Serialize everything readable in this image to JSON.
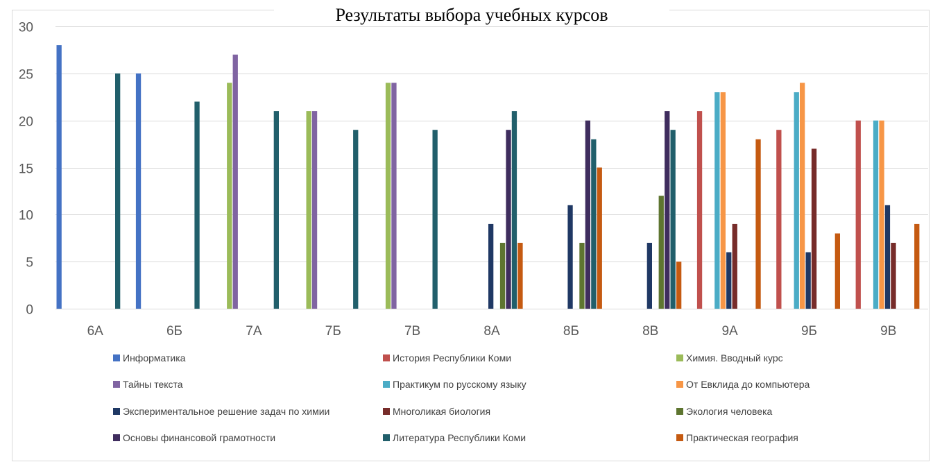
{
  "chart_data": {
    "type": "bar",
    "title": "Результаты выбора учебных курсов",
    "xlabel": "",
    "ylabel": "",
    "ylim": [
      0,
      30
    ],
    "yticks": [
      0,
      5,
      10,
      15,
      20,
      25,
      30
    ],
    "grid": true,
    "legend_position": "bottom",
    "categories": [
      "6А",
      "6Б",
      "7А",
      "7Б",
      "7В",
      "8А",
      "8Б",
      "8В",
      "9А",
      "9Б",
      "9В"
    ],
    "series": [
      {
        "name": "Информатика",
        "color": "#4472C4",
        "values": [
          28,
          25,
          0,
          0,
          0,
          0,
          0,
          0,
          0,
          0,
          0
        ]
      },
      {
        "name": "История Республики Коми",
        "color": "#C0504D",
        "values": [
          0,
          0,
          0,
          0,
          0,
          0,
          0,
          0,
          21,
          19,
          20
        ]
      },
      {
        "name": "Химия. Вводный курс",
        "color": "#9BBB59",
        "values": [
          0,
          0,
          24,
          21,
          24,
          0,
          0,
          0,
          0,
          0,
          0
        ]
      },
      {
        "name": "Тайны текста",
        "color": "#8064A2",
        "values": [
          0,
          0,
          27,
          21,
          24,
          0,
          0,
          0,
          0,
          0,
          0
        ]
      },
      {
        "name": "Практикум по русскому языку",
        "color": "#4BACC6",
        "values": [
          0,
          0,
          0,
          0,
          0,
          0,
          0,
          0,
          23,
          23,
          20
        ]
      },
      {
        "name": "От Евклида до компьютера",
        "color": "#F79646",
        "values": [
          0,
          0,
          0,
          0,
          0,
          0,
          0,
          0,
          23,
          24,
          20
        ]
      },
      {
        "name": "Экспериментальное решение задач по химии",
        "color": "#1F3864",
        "values": [
          0,
          0,
          0,
          0,
          0,
          9,
          11,
          7,
          6,
          6,
          11
        ]
      },
      {
        "name": "Многоликая биология",
        "color": "#772C2A",
        "values": [
          0,
          0,
          0,
          0,
          0,
          0,
          0,
          0,
          9,
          17,
          7
        ]
      },
      {
        "name": "Экология человека",
        "color": "#5E7530",
        "values": [
          0,
          0,
          0,
          0,
          0,
          7,
          7,
          12,
          0,
          0,
          0
        ]
      },
      {
        "name": "Основы финансовой грамотности",
        "color": "#3F2D5E",
        "values": [
          0,
          0,
          0,
          0,
          0,
          19,
          20,
          21,
          0,
          0,
          0
        ]
      },
      {
        "name": "Литература Республики Коми",
        "color": "#215F6B",
        "values": [
          25,
          22,
          21,
          19,
          19,
          21,
          18,
          19,
          0,
          0,
          0
        ]
      },
      {
        "name": "Практическая география",
        "color": "#C55A11",
        "values": [
          0,
          0,
          0,
          0,
          0,
          7,
          15,
          5,
          18,
          8,
          9
        ]
      }
    ]
  }
}
